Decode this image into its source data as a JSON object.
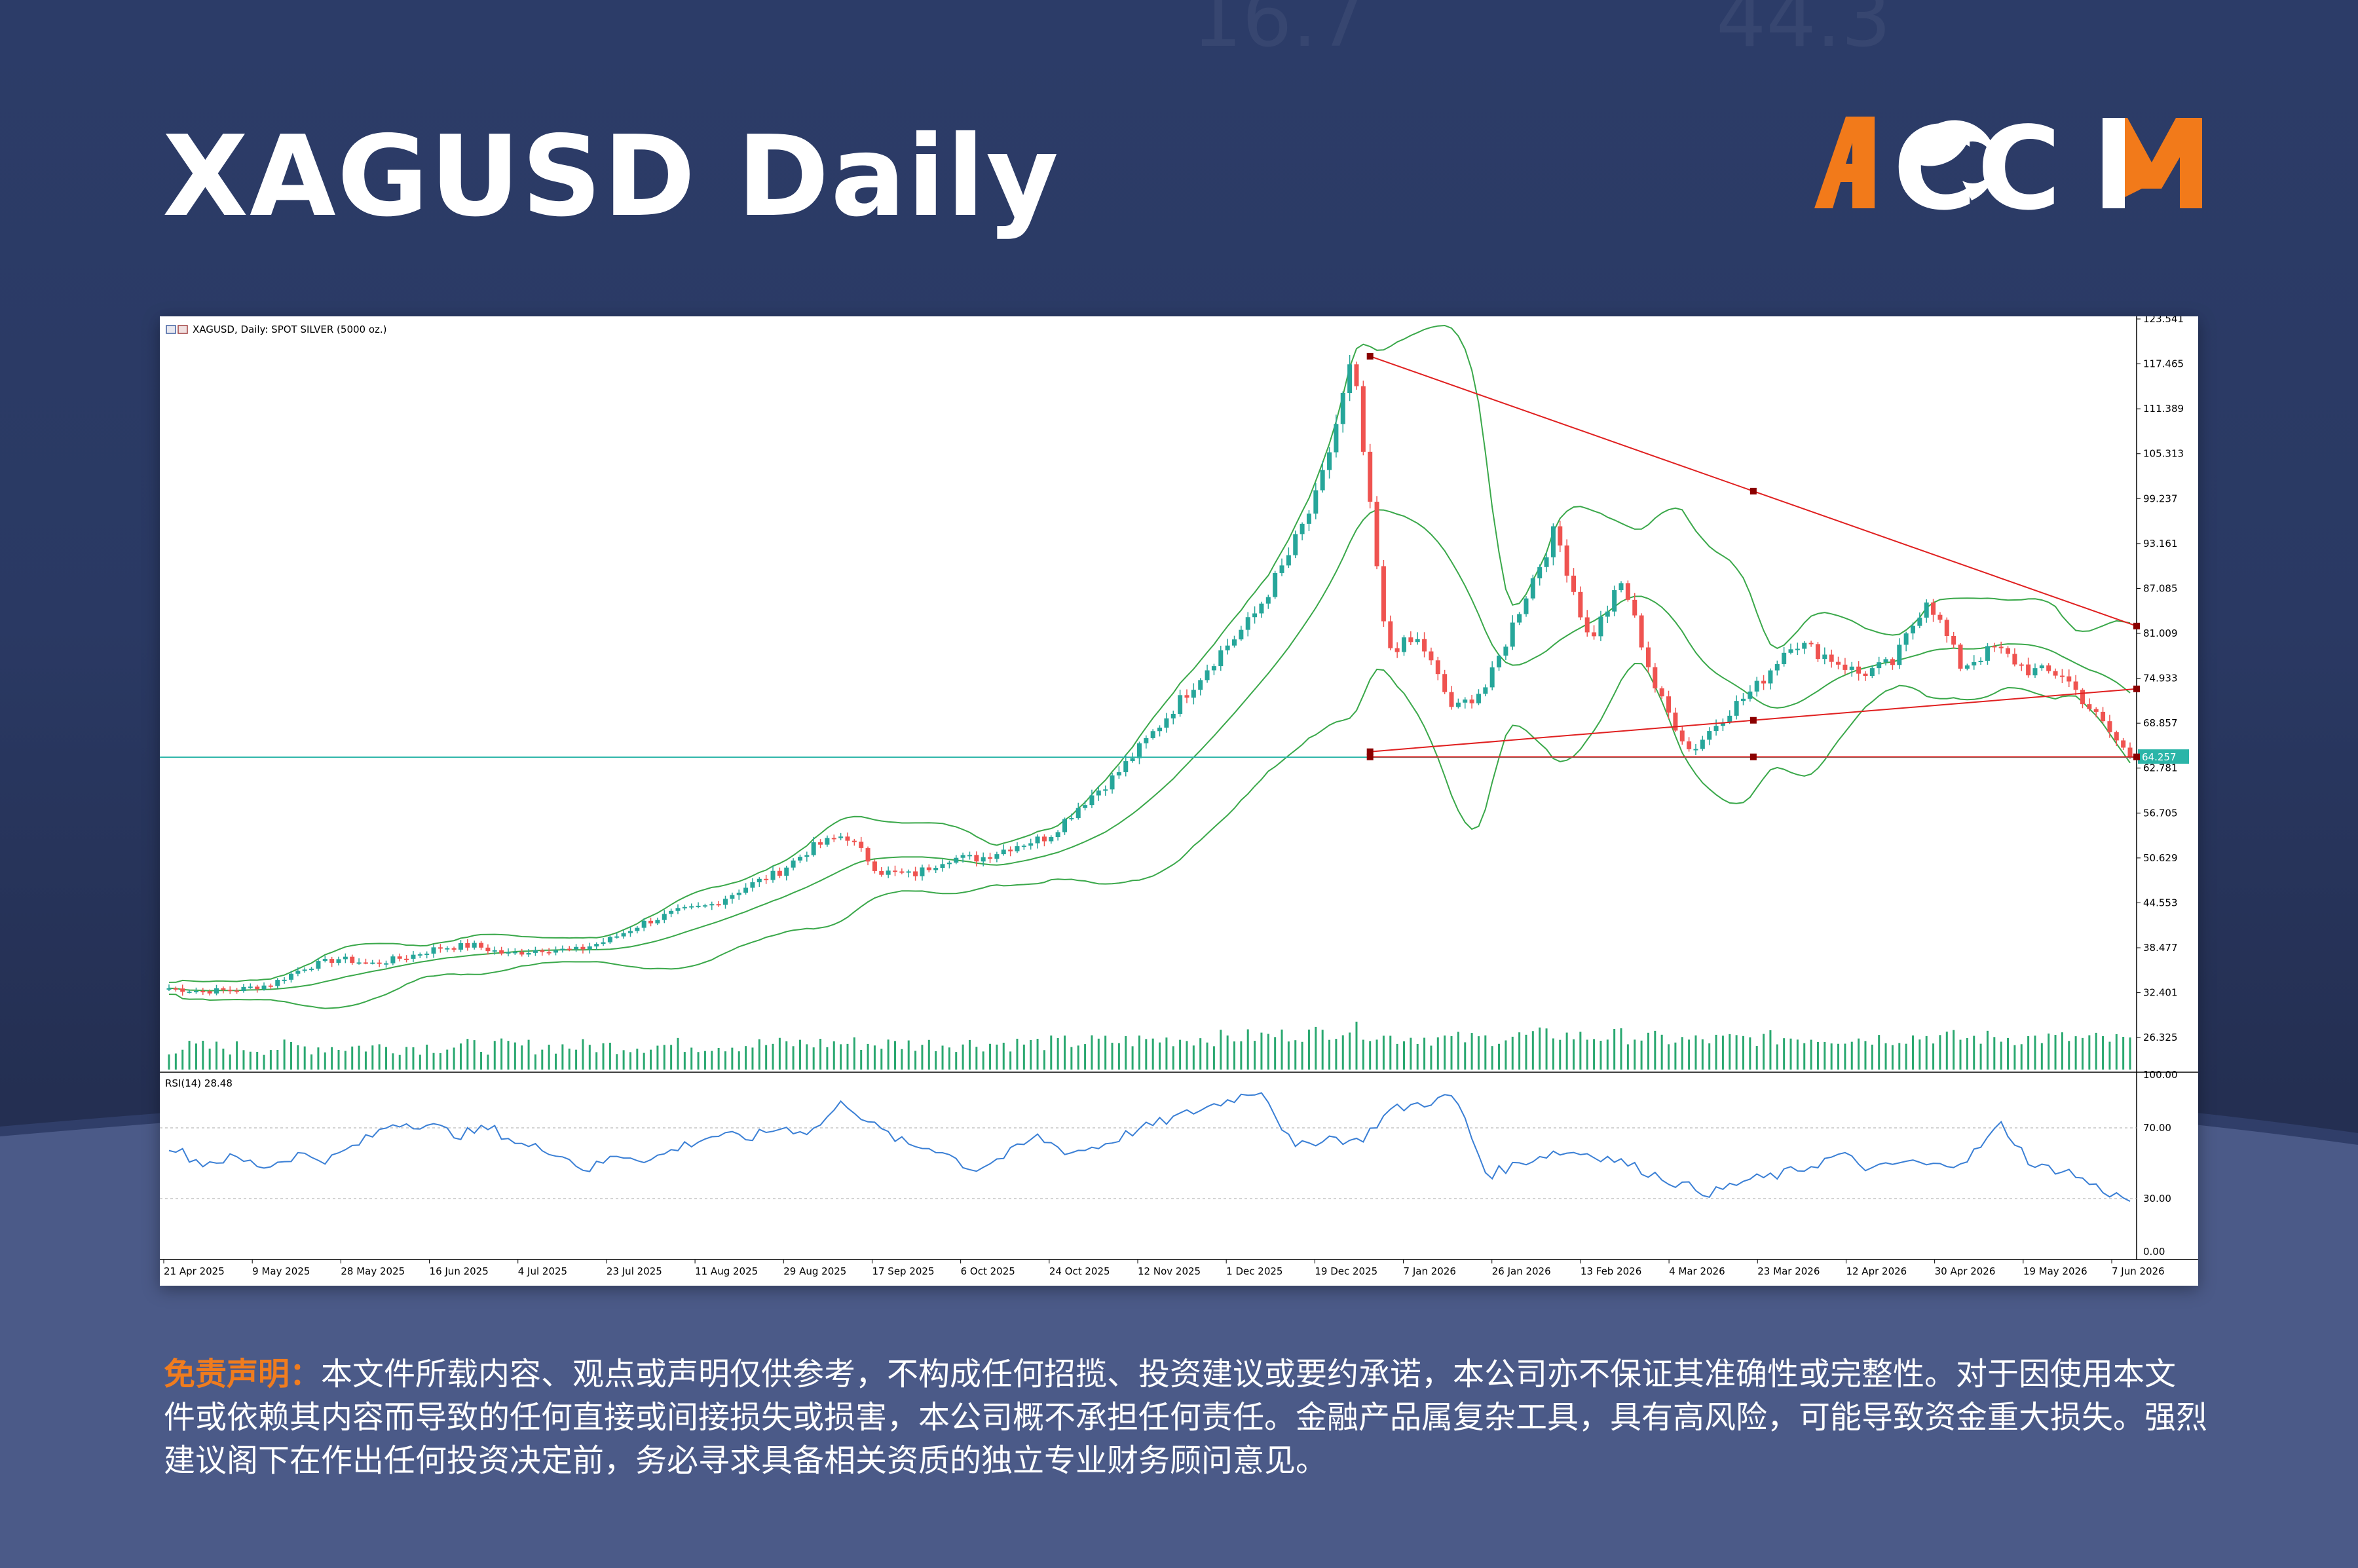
{
  "header": {
    "title": "XAGUSD Daily",
    "logo_text": "ACCM",
    "logo_color": "#f27a1a"
  },
  "chart_data": {
    "type": "candlestick",
    "title": "XAGUSD, Daily:  SPOT SILVER (5000 oz.)",
    "ylim": [
      22.0,
      123.541
    ],
    "y_ticks": [
      "123.541",
      "117.465",
      "111.389",
      "105.313",
      "99.237",
      "93.161",
      "87.085",
      "81.009",
      "74.933",
      "68.857",
      "62.781",
      "56.705",
      "50.629",
      "44.553",
      "38.477",
      "32.401",
      "26.325"
    ],
    "x_ticks": [
      "21 Apr 2025",
      "9 May 2025",
      "28 May 2025",
      "16 Jun 2025",
      "4 Jul 2025",
      "23 Jul 2025",
      "11 Aug 2025",
      "29 Aug 2025",
      "17 Sep 2025",
      "6 Oct 2025",
      "24 Oct 2025",
      "12 Nov 2025",
      "1 Dec 2025",
      "19 Dec 2025",
      "7 Jan 2026",
      "26 Jan 2026",
      "13 Feb 2026",
      "4 Mar 2026",
      "23 Mar 2026",
      "12 Apr 2026",
      "30 Apr 2026",
      "19 May 2026",
      "7 Jun 2026"
    ],
    "close_path": [
      33.0,
      32.6,
      32.8,
      33.5,
      35.8,
      37.0,
      36.3,
      37.2,
      38.5,
      38.8,
      37.6,
      38.3,
      38.1,
      39.5,
      41.8,
      43.3,
      44.2,
      46.6,
      48.6,
      52.0,
      53.8,
      48.8,
      48.3,
      50.6,
      50.6,
      52.3,
      53.5,
      58.0,
      61.8,
      67.0,
      72.5,
      78.0,
      82.8,
      90.5,
      100.0,
      118.0,
      79.0,
      80.0,
      70.5,
      74.0,
      85.0,
      95.0,
      80.0,
      88.0,
      73.0,
      65.0,
      70.0,
      74.0,
      80.0,
      78.0,
      75.5,
      77.0,
      86.0,
      76.5,
      79.0,
      76.0,
      75.5,
      69.8,
      64.26
    ],
    "current_price": "64.257",
    "current_price_value": 64.257,
    "horizontal_level": 64.257,
    "trendlines": [
      {
        "name": "descending resistance",
        "from": {
          "x": "26 Jan 2026",
          "y": 118.5
        },
        "to": {
          "x": "7 Jun 2026",
          "y": 82.0
        }
      },
      {
        "name": "rising support",
        "from": {
          "x": "26 Jan 2026",
          "y": 65.0
        },
        "to": {
          "x": "7 Jun 2026",
          "y": 73.5
        }
      },
      {
        "name": "flat base",
        "from": {
          "x": "26 Jan 2026",
          "y": 64.3
        },
        "to": {
          "x": "7 Jun 2026",
          "y": 64.3
        }
      }
    ],
    "bollinger_bands": true,
    "volume": true,
    "rsi": {
      "label": "RSI(14) 28.48",
      "value": 28.48,
      "y_ticks": [
        "100.00",
        "70.00",
        "30.00",
        "0.00"
      ],
      "levels": [
        70,
        30
      ],
      "path": [
        60,
        50,
        53,
        48,
        55,
        52,
        62,
        73,
        72,
        66,
        70,
        60,
        57,
        46,
        55,
        52,
        60,
        66,
        64,
        70,
        68,
        85,
        70,
        60,
        58,
        46,
        54,
        65,
        56,
        60,
        68,
        74,
        80,
        86,
        92,
        58,
        65,
        62,
        80,
        84,
        88,
        43,
        50,
        56,
        56,
        52,
        45,
        38,
        33,
        40,
        43,
        48,
        55,
        46,
        51,
        48,
        53,
        72,
        48,
        46,
        36,
        28.48
      ]
    },
    "colors": {
      "up": "#26a69a",
      "down": "#ef5350",
      "bands": "#3aa84a",
      "trendline": "#e02020",
      "level": "#2bb5a8",
      "rsi": "#3a7fd5"
    }
  },
  "disclaimer": {
    "label": "免责声明：",
    "text": "本文件所载内容、观点或声明仅供参考，不构成任何招揽、投资建议或要约承诺，本公司亦不保证其准确性或完整性。对于因使用本文件或依赖其内容而导致的任何直接或间接损失或损害，本公司概不承担任何责任。金融产品属复杂工具，具有高风险，可能导致资金重大损失。强烈建议阁下在作出任何投资决定前，务必寻求具备相关资质的独立专业财务顾问意见。"
  }
}
